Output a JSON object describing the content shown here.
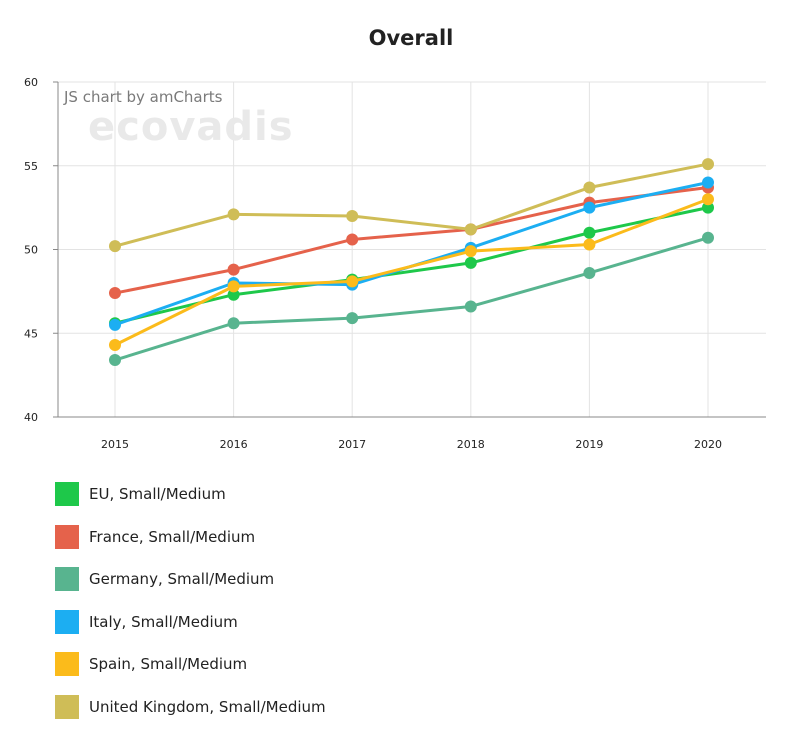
{
  "chart_data": {
    "type": "line",
    "title": "Overall",
    "credit": "JS chart by amCharts",
    "watermark": "ecovadis",
    "x": [
      "2015",
      "2016",
      "2017",
      "2018",
      "2019",
      "2020"
    ],
    "yticks": [
      "60",
      "55",
      "50",
      "45",
      "40"
    ],
    "ylim": [
      40,
      60
    ],
    "grid": true,
    "legend_position": "bottom",
    "series": [
      {
        "name": "EU, Small/Medium",
        "color": "#1ec84a",
        "values": [
          45.6,
          47.3,
          48.2,
          49.2,
          51.0,
          52.5
        ]
      },
      {
        "name": "France, Small/Medium",
        "color": "#e5624b",
        "values": [
          47.4,
          48.8,
          50.6,
          51.2,
          52.8,
          53.7
        ]
      },
      {
        "name": "Germany, Small/Medium",
        "color": "#58b48f",
        "values": [
          43.4,
          45.6,
          45.9,
          46.6,
          48.6,
          50.7
        ]
      },
      {
        "name": "Italy, Small/Medium",
        "color": "#1caef2",
        "values": [
          45.5,
          48.0,
          47.9,
          50.1,
          52.5,
          54.0
        ]
      },
      {
        "name": "Spain, Small/Medium",
        "color": "#fbbb1b",
        "values": [
          44.3,
          47.8,
          48.1,
          49.9,
          50.3,
          53.0
        ]
      },
      {
        "name": "United Kingdom, Small/Medium",
        "color": "#cfbd57",
        "values": [
          50.2,
          52.1,
          52.0,
          51.2,
          53.7,
          55.1
        ]
      }
    ]
  }
}
